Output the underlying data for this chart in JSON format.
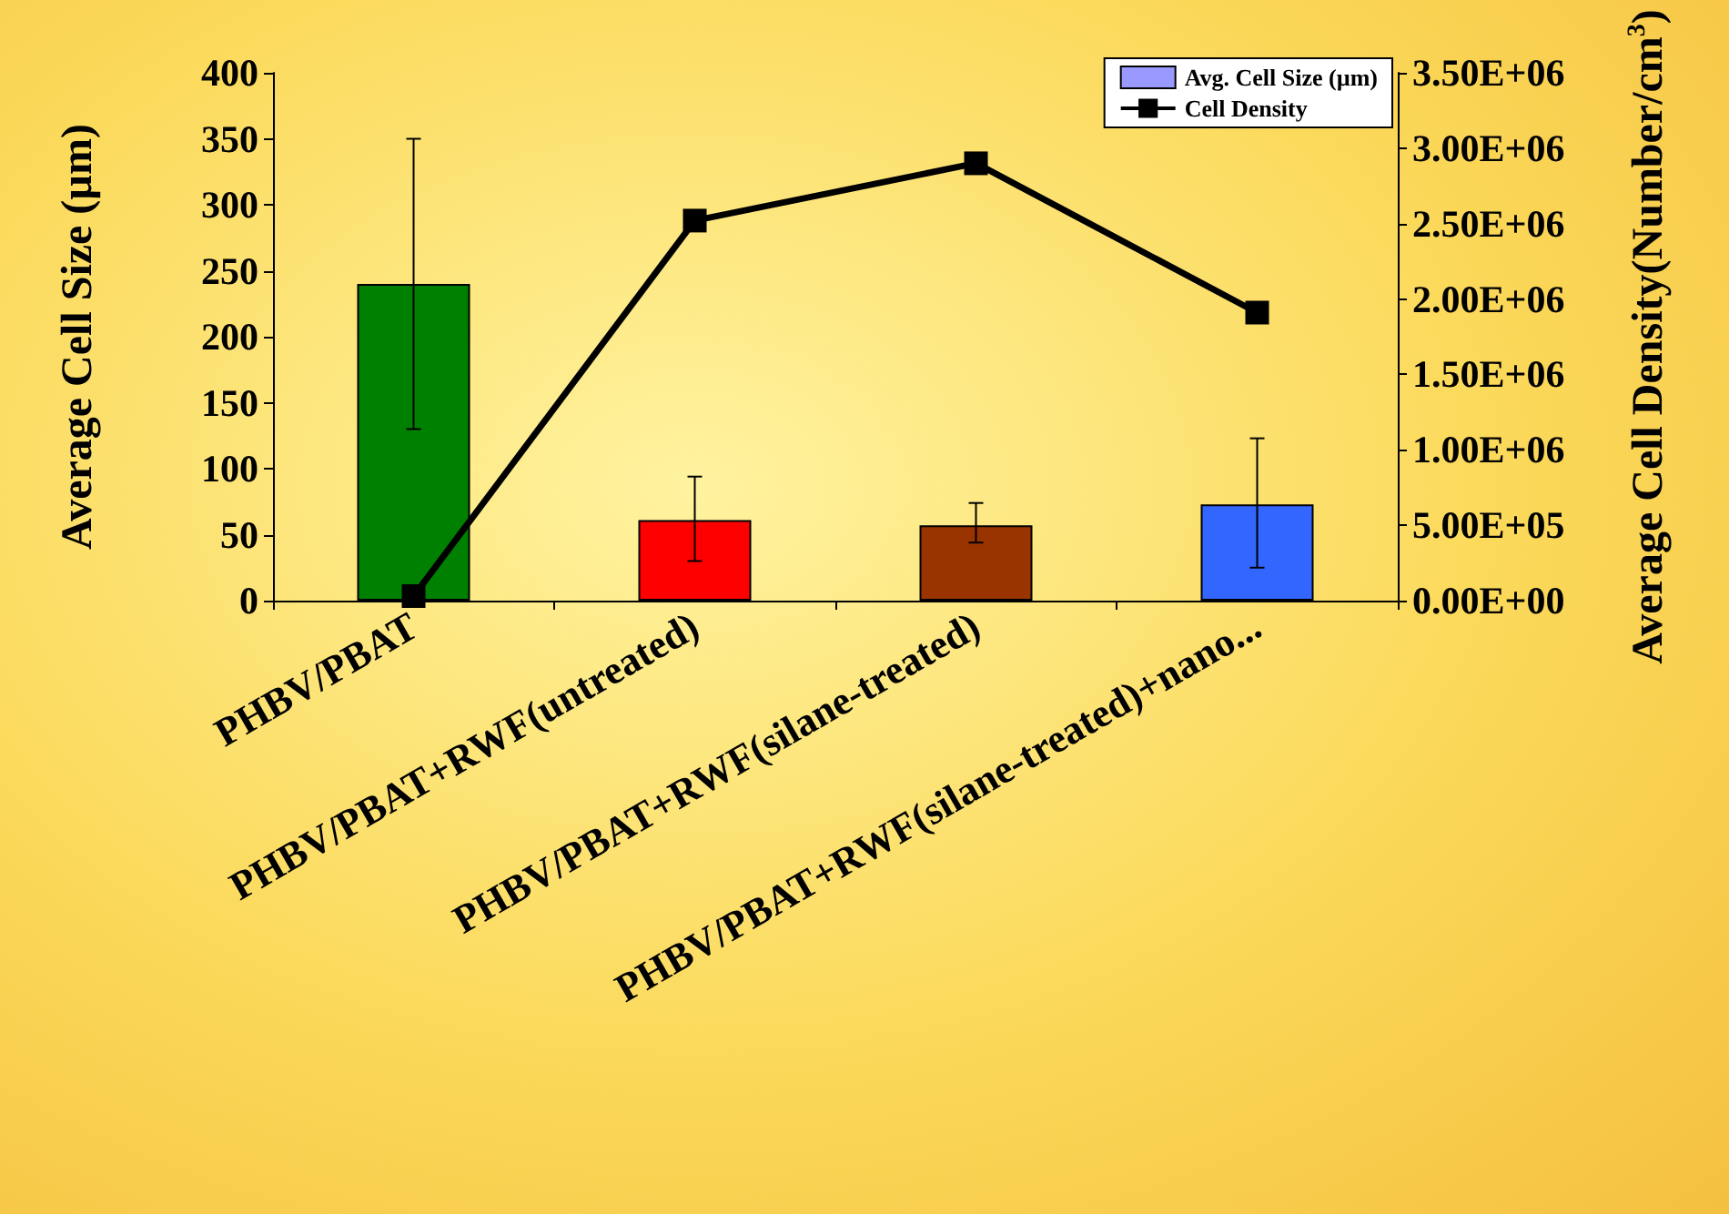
{
  "chart_data": {
    "type": "bar",
    "ylabel": "Average Cell Size (µm)",
    "y2label": "Average Cell Density(Number/cm$^{3}$)",
    "categories": [
      "PHBV/PBAT",
      "PHBV/PBAT+RWF(untreated)",
      "PHBV/PBAT+RWF(silane-treated)",
      "PHBV/PBAT+RWF(silane-treated)+nano..."
    ],
    "series": [
      {
        "name": "Avg. Cell Size (µm)",
        "color": "#9999ff",
        "colors": [
          "#008000",
          "#ff0000",
          "#993300",
          "#3366ff"
        ],
        "values": [
          240,
          61,
          57,
          73
        ],
        "errors": [
          [
            130,
            350
          ],
          [
            30,
            94
          ],
          [
            44,
            74
          ],
          [
            25,
            123
          ]
        ]
      },
      {
        "name": "Cell Density",
        "type": "line",
        "axis": "y2",
        "color": "#000000",
        "values": [
          30000,
          2520000,
          2900000,
          1910000
        ]
      }
    ],
    "ylim": [
      0,
      400
    ],
    "yticks": [
      0,
      50,
      100,
      150,
      200,
      250,
      300,
      350,
      400
    ],
    "y2lim": [
      0,
      3500000
    ],
    "y2ticks": [
      {
        "value": 0,
        "label": "0.00E+00"
      },
      {
        "value": 500000,
        "label": "5.00E+05"
      },
      {
        "value": 1000000,
        "label": "1.00E+06"
      },
      {
        "value": 1500000,
        "label": "1.50E+06"
      },
      {
        "value": 2000000,
        "label": "2.00E+06"
      },
      {
        "value": 2500000,
        "label": "2.50E+06"
      },
      {
        "value": 3000000,
        "label": "3.00E+06"
      },
      {
        "value": 3500000,
        "label": "3.50E+06"
      }
    ],
    "grid": false,
    "legend": "top right",
    "marker": "square",
    "line_style": "solid"
  }
}
